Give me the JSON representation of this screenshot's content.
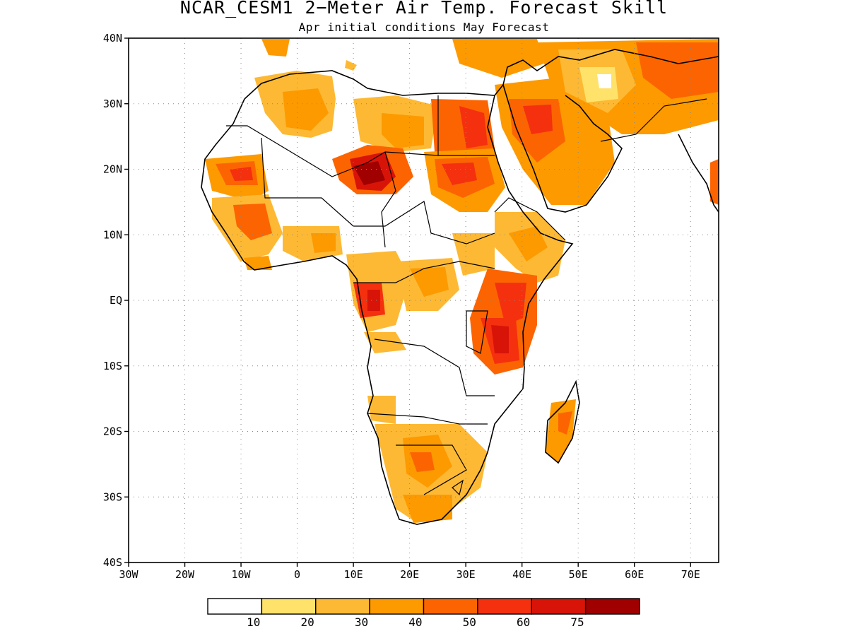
{
  "title": "NCAR_CESM1 2−Meter Air Temp. Forecast Skill",
  "subtitle": "Apr initial conditions  May Forecast",
  "map": {
    "lon_range": [
      -30,
      75
    ],
    "lat_range": [
      -40,
      40
    ],
    "lat_ticks": [
      {
        "value": 40,
        "label": "40N"
      },
      {
        "value": 30,
        "label": "30N"
      },
      {
        "value": 20,
        "label": "20N"
      },
      {
        "value": 10,
        "label": "10N"
      },
      {
        "value": 0,
        "label": "EQ"
      },
      {
        "value": -10,
        "label": "10S"
      },
      {
        "value": -20,
        "label": "20S"
      },
      {
        "value": -30,
        "label": "30S"
      },
      {
        "value": -40,
        "label": "40S"
      }
    ],
    "lon_ticks": [
      {
        "value": -30,
        "label": "30W"
      },
      {
        "value": -20,
        "label": "20W"
      },
      {
        "value": -10,
        "label": "10W"
      },
      {
        "value": 0,
        "label": "0"
      },
      {
        "value": 10,
        "label": "10E"
      },
      {
        "value": 20,
        "label": "20E"
      },
      {
        "value": 30,
        "label": "30E"
      },
      {
        "value": 40,
        "label": "40E"
      },
      {
        "value": 50,
        "label": "50E"
      },
      {
        "value": 60,
        "label": "60E"
      },
      {
        "value": 70,
        "label": "70E"
      }
    ],
    "grid": "dotted"
  },
  "colorbar": {
    "colors": [
      "#ffffff",
      "#ffe26a",
      "#fdb934",
      "#fd9a00",
      "#fc6402",
      "#f4300e",
      "#d81409",
      "#a00000"
    ],
    "labels": [
      "10",
      "20",
      "30",
      "40",
      "50",
      "60",
      "75"
    ]
  }
}
